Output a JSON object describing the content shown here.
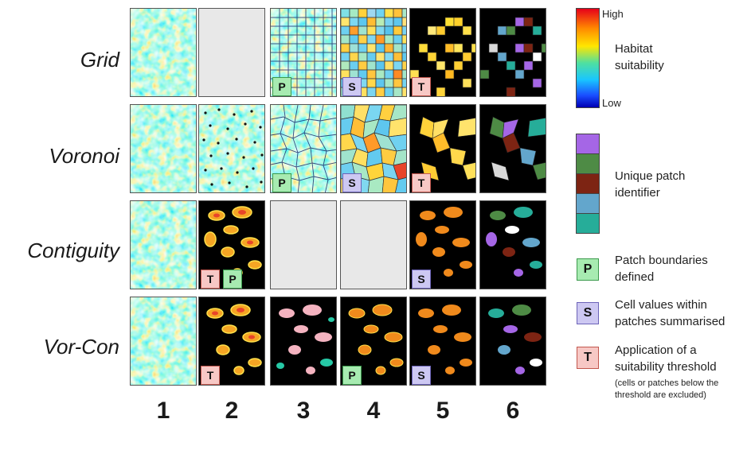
{
  "rows": [
    "Grid",
    "Voronoi",
    "Contiguity",
    "Vor-Con"
  ],
  "columns": [
    "1",
    "2",
    "3",
    "4",
    "5",
    "6"
  ],
  "badges": {
    "p": "P",
    "s": "S",
    "t": "T"
  },
  "legend": {
    "high": "High",
    "low": "Low",
    "suitability_line1": "Habitat",
    "suitability_line2": "suitability",
    "patch_line1": "Unique patch",
    "patch_line2": "identifier",
    "patch_colors": [
      "#a566e6",
      "#4e8b45",
      "#7d2413",
      "#63a6cc",
      "#26ad99"
    ],
    "p_text1": "Patch boundaries",
    "p_text2": "defined",
    "s_text1": "Cell values within",
    "s_text2": "patches summarised",
    "t_text1": "Application of a",
    "t_text2": "suitability threshold",
    "t_note1": "(cells or patches below the",
    "t_note2": "threshold are excluded)"
  }
}
